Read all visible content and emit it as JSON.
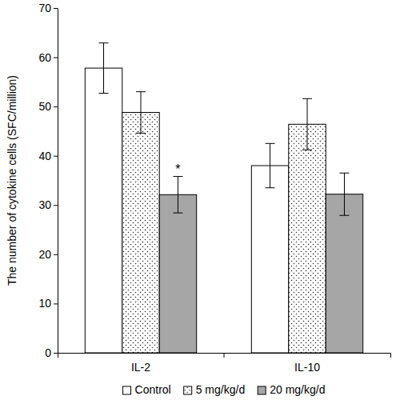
{
  "chart_data": {
    "type": "bar",
    "y_label": "The number of cytokine cells (SFC/million)",
    "categories": [
      "IL-2",
      "IL-10"
    ],
    "series": [
      {
        "name": "Control",
        "color": "#ffffff",
        "values": [
          57.8,
          38.0
        ],
        "errors": [
          5.1,
          4.5
        ]
      },
      {
        "name": "5 mg/kg/d",
        "color": "#ffffff",
        "marker": "dotted",
        "values": [
          48.8,
          46.4
        ],
        "errors": [
          4.2,
          5.2
        ]
      },
      {
        "name": "20 mg/kg/d",
        "color": "#a6a6a6",
        "values": [
          32.1,
          32.2
        ],
        "errors": [
          3.7,
          4.3
        ]
      }
    ],
    "annotations": [
      {
        "text": "*",
        "category": "IL-2",
        "series": "20 mg/kg/d"
      }
    ],
    "ylim": [
      0,
      70
    ],
    "yticks": [
      0,
      10,
      20,
      30,
      40,
      50,
      60,
      70
    ],
    "legend": "bottom",
    "grid": false
  }
}
